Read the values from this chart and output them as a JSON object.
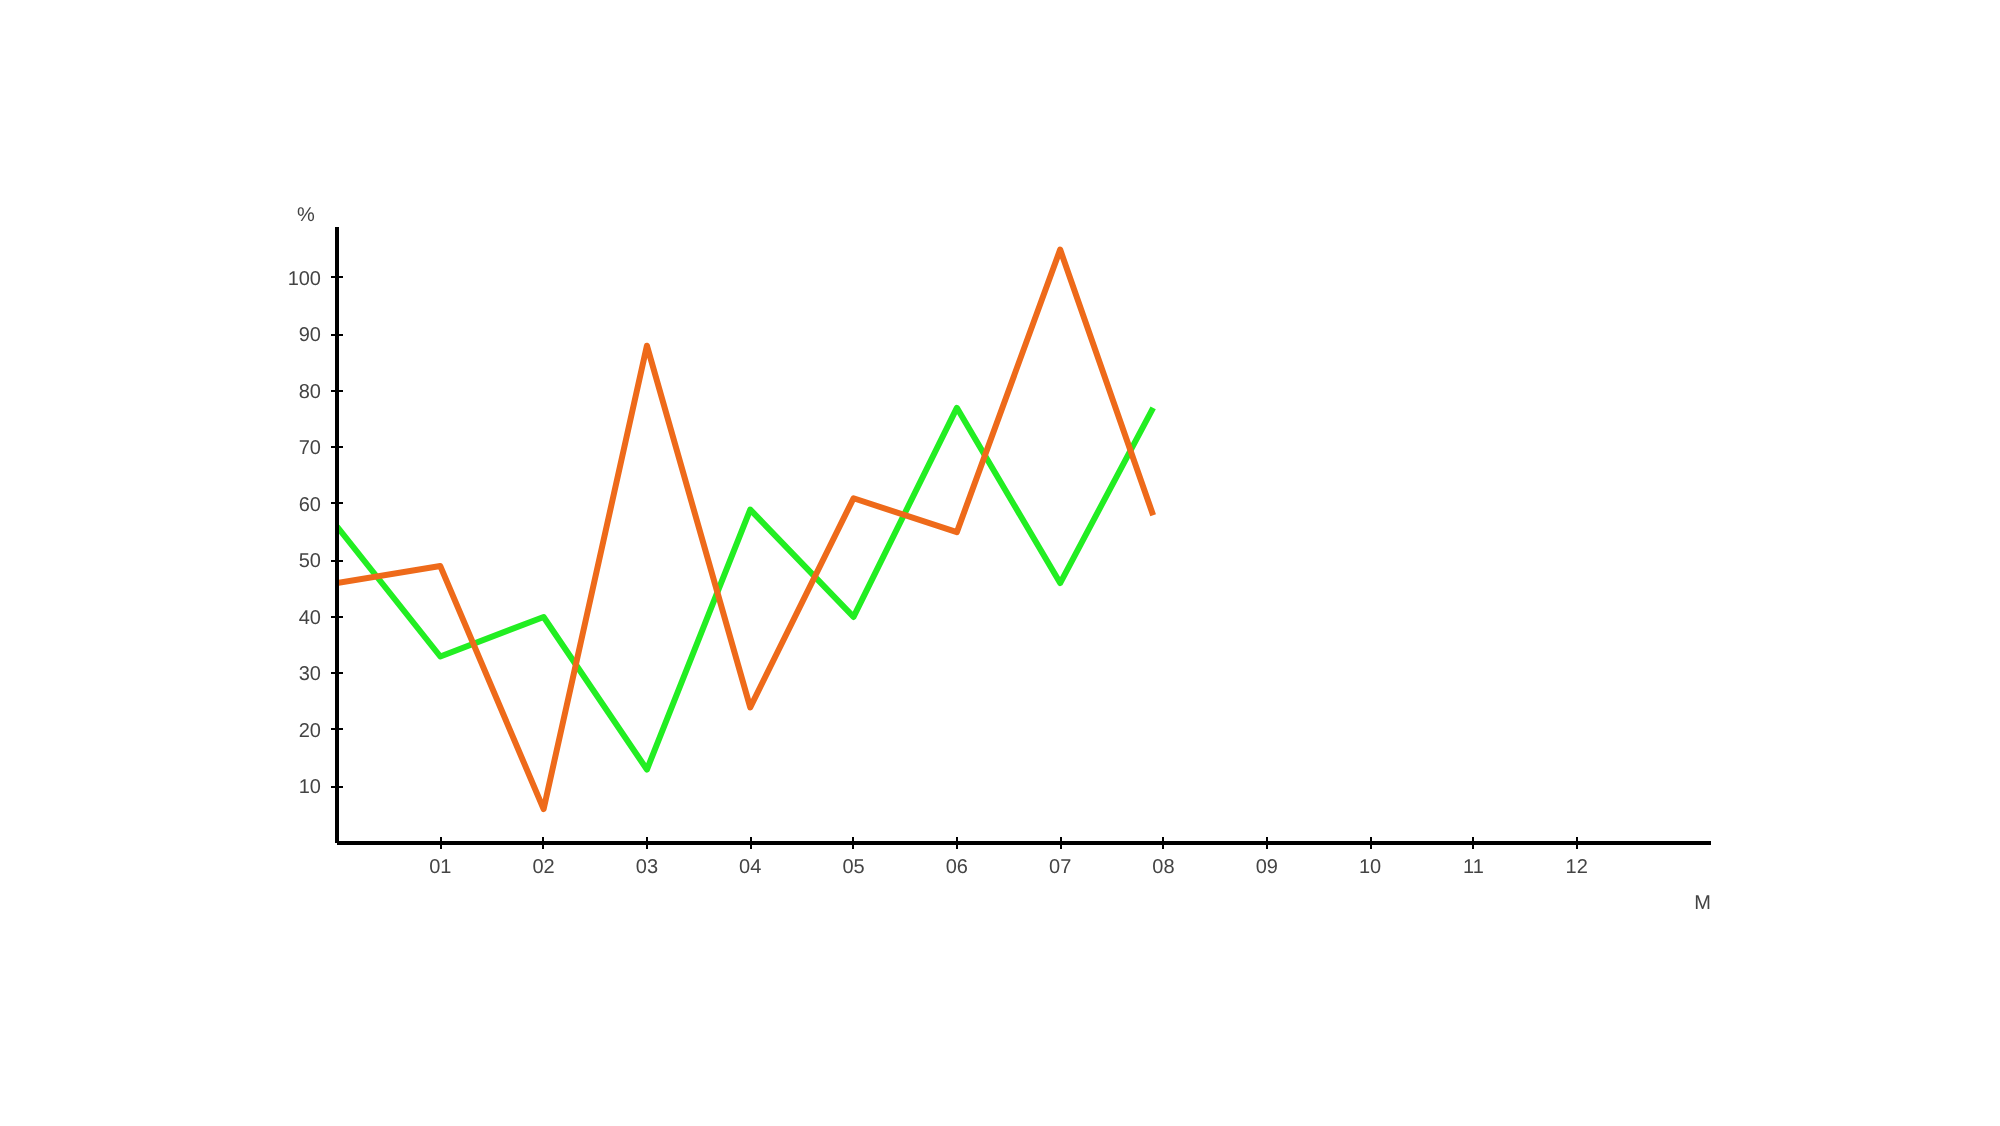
{
  "chart_data": {
    "type": "line",
    "ylabel": "%",
    "xlabel": "M",
    "xlim": [
      0,
      13.3
    ],
    "ylim": [
      0,
      109
    ],
    "xticks": [
      {
        "value": 1,
        "label": "01"
      },
      {
        "value": 2,
        "label": "02"
      },
      {
        "value": 3,
        "label": "03"
      },
      {
        "value": 4,
        "label": "04"
      },
      {
        "value": 5,
        "label": "05"
      },
      {
        "value": 6,
        "label": "06"
      },
      {
        "value": 7,
        "label": "07"
      },
      {
        "value": 8,
        "label": "08"
      },
      {
        "value": 9,
        "label": "09"
      },
      {
        "value": 10,
        "label": "10"
      },
      {
        "value": 11,
        "label": "11"
      },
      {
        "value": 12,
        "label": "12"
      }
    ],
    "yticks": [
      10,
      20,
      30,
      40,
      50,
      60,
      70,
      80,
      90,
      100
    ],
    "grid": false,
    "marker": "none",
    "line_style": "solid",
    "series": [
      {
        "color": "#22ee22",
        "x": [
          0,
          1,
          2,
          3,
          4,
          5,
          6,
          7,
          7.9
        ],
        "values": [
          56,
          33,
          40,
          13,
          59,
          40,
          77,
          46,
          77
        ]
      },
      {
        "color": "#ee6a1a",
        "x": [
          0,
          1,
          2,
          3,
          4,
          5,
          6,
          7,
          7.9
        ],
        "values": [
          46,
          49,
          6,
          88,
          24,
          61,
          55,
          105,
          58
        ]
      }
    ]
  }
}
